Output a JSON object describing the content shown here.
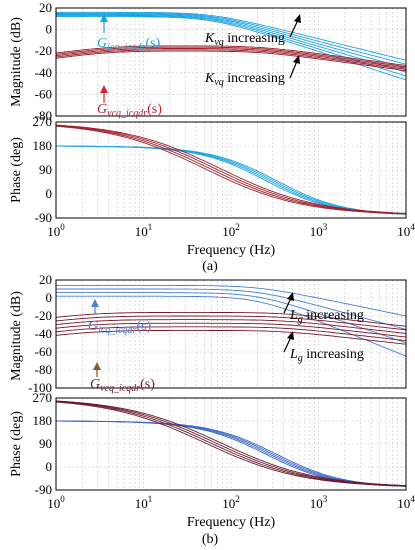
{
  "chart_data": [
    {
      "id": "a-mag",
      "type": "line",
      "xscale": "log",
      "xlim": [
        1,
        10000
      ],
      "ylim": [
        -80,
        20
      ],
      "yticks": [
        20,
        0,
        -20,
        -40,
        -60,
        -80
      ],
      "ylabel": "Magnitude (dB)",
      "grid": true,
      "series": [
        {
          "name": "G_icq_icqdr(s)",
          "color": "#1ba3e0",
          "kind": "icq",
          "base": 16,
          "spread": [
            0,
            -0.8,
            -1.6,
            -2.4,
            -3.2,
            -4.0
          ],
          "fc": 60
        },
        {
          "name": "G_vcq_icqdr(s)",
          "color": "#a0202c",
          "kind": "vcq",
          "peak": -19,
          "spread": [
            0,
            -1.2,
            -2.4,
            -3.6,
            -4.8
          ],
          "f1": 4,
          "f2": 220
        }
      ],
      "annotations": [
        {
          "text": "K",
          "sub": "vq",
          "rest": " increasing"
        },
        {
          "text": "K",
          "sub": "vq",
          "rest": " increasing"
        }
      ]
    },
    {
      "id": "a-phase",
      "type": "line",
      "xscale": "log",
      "xlim": [
        1,
        10000
      ],
      "ylim": [
        -90,
        270
      ],
      "yticks": [
        270,
        180,
        90,
        0,
        -90
      ],
      "ylabel": "Phase (deg)",
      "xlabel": "Frequency (Hz)",
      "xticks": [
        "10^0",
        "10^1",
        "10^2",
        "10^3",
        "10^4"
      ],
      "grid": true,
      "series": [
        {
          "color": "#1ba3e0",
          "kind": "phase-icq",
          "start": 180,
          "end": -80
        },
        {
          "color": "#a0202c",
          "kind": "phase-vcq",
          "start": 270,
          "end": -80
        }
      ],
      "caption": "(a)"
    },
    {
      "id": "b-mag",
      "type": "line",
      "xscale": "log",
      "xlim": [
        1,
        10000
      ],
      "ylim": [
        -100,
        20
      ],
      "yticks": [
        20,
        0,
        -20,
        -40,
        -60,
        -80,
        -100
      ],
      "ylabel": "Magnitude (dB)",
      "grid": true,
      "series": [
        {
          "name": "G_icq_icqdr(s)",
          "color": "#4a7fd6",
          "kind": "icq",
          "base": 14,
          "spread": [
            0,
            -4,
            -8,
            -12
          ],
          "fc": 200
        },
        {
          "name": "G_vcq_icqdr(s)",
          "color": "#7a1a2a",
          "kind": "vcq",
          "peak": -20,
          "spread": [
            0,
            -4,
            -8,
            -12,
            -16,
            -20
          ],
          "f1": 3,
          "f2": 400
        }
      ],
      "annotations": [
        {
          "text": "L",
          "sub": "g",
          "rest": " increasing"
        },
        {
          "text": "L",
          "sub": "g",
          "rest": " increasing"
        }
      ]
    },
    {
      "id": "b-phase",
      "type": "line",
      "xscale": "log",
      "xlim": [
        1,
        10000
      ],
      "ylim": [
        -90,
        270
      ],
      "yticks": [
        270,
        180,
        90,
        0,
        -90
      ],
      "ylabel": "Phase (deg)",
      "xlabel": "Frequency (Hz)",
      "xticks": [
        "10^0",
        "10^1",
        "10^2",
        "10^3",
        "10^4"
      ],
      "grid": true,
      "series": [
        {
          "color": "#3a68c8",
          "kind": "phase-icq",
          "start": 180,
          "end": -80
        },
        {
          "color": "#6a1a2a",
          "kind": "phase-vcq",
          "start": 270,
          "end": -80
        }
      ],
      "caption": "(b)"
    }
  ],
  "labels": {
    "a_icq_main": "G",
    "a_icq_sub": "icq_icqdr",
    "a_vcq_main": "G",
    "a_vcq_sub": "vcq_icqdr",
    "b_icq_main": "G",
    "b_icq_sub": "icq_icqdr",
    "b_vcq_main": "G",
    "b_vcq_sub": "vcq_icqdr",
    "paren": "(s)"
  },
  "colors": {
    "arrow_icq_a": "#1ba3e0",
    "arrow_vcq_a": "#e0202c",
    "arrow_icq_b": "#4a7fd6",
    "arrow_vcq_b": "#8a5a2a"
  }
}
